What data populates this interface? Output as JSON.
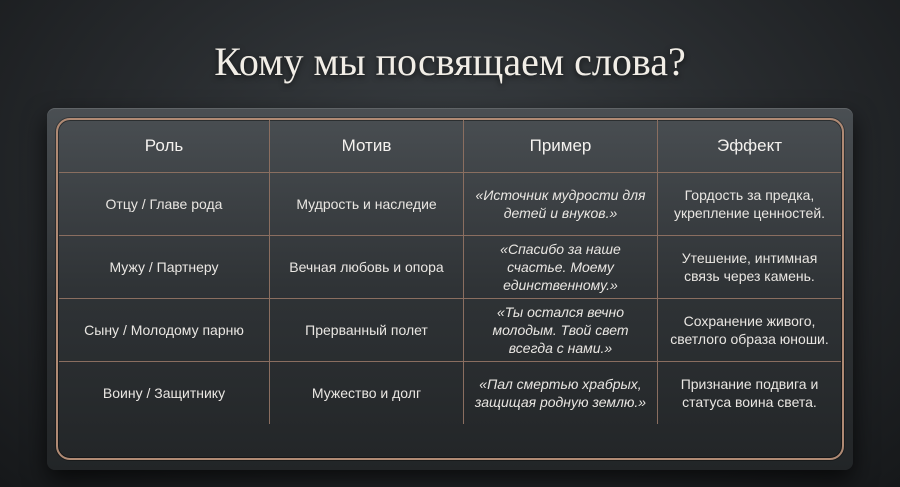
{
  "title": "Кому мы посвящаем слова?",
  "table": {
    "headers": [
      "Роль",
      "Мотив",
      "Пример",
      "Эффект"
    ],
    "rows": [
      {
        "role": "Отцу / Главе рода",
        "motive": "Мудрость и наследие",
        "example": "«Источник мудрости для детей и внуков.»",
        "effect": "Гордость за предка, укрепление ценностей."
      },
      {
        "role": "Мужу / Партнеру",
        "motive": "Вечная любовь и опора",
        "example": "«Спасибо за наше счастье. Моему единственному.»",
        "effect": "Утешение, интимная связь через камень."
      },
      {
        "role": "Сыну / Молодому парню",
        "motive": "Прерванный полет",
        "example": "«Ты остался вечно молодым. Твой свет всегда с нами.»",
        "effect": "Сохранение живого, светлого образа юноши."
      },
      {
        "role": "Воину / Защитнику",
        "motive": "Мужество и долг",
        "example": "«Пал смертью храбрых, защищая родную землю.»",
        "effect": "Признание подвига и статуса воина света."
      }
    ]
  },
  "colors": {
    "frame": "#b08a74",
    "text": "#e9e6e2"
  }
}
